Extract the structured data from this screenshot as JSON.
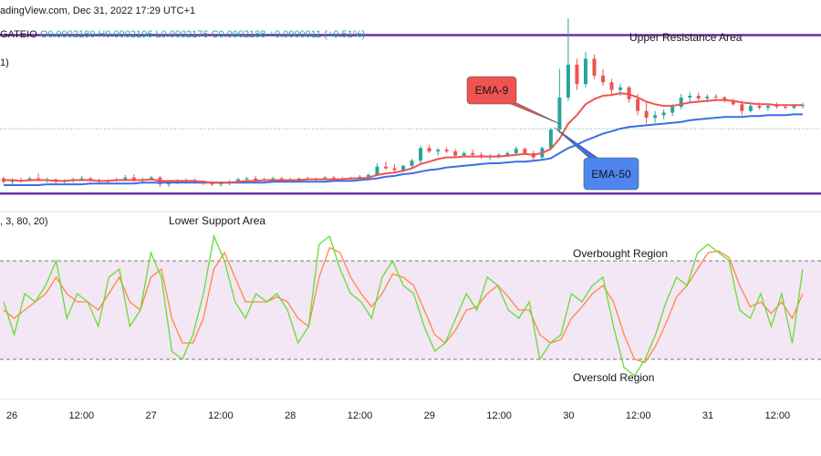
{
  "header": {
    "source": "adingView.com, Dec 31, 2022 17:29 UTC+1",
    "symbol": "GATEIO",
    "ohlc": "O0.0002180  H0.0002196  L0.0002176  C0.0002188  +0.0000011 (+0.51%)",
    "price_pane_tag": "1)",
    "stoch_pane_tag": ", 3, 80, 20)"
  },
  "colors": {
    "up": "#26a69a",
    "down": "#ef5350",
    "ema9": "#ef5350",
    "ema50": "#3c6ee6",
    "stoch_k": "#66dd33",
    "stoch_d": "#ff8844",
    "band_fill": "#f3e6f5",
    "resistance": "#6c2fa8"
  },
  "chart_data": [
    {
      "type": "candlestick",
      "title": "",
      "y_range": [
        0.0002105,
        0.000233
      ],
      "x_labels": [
        "26",
        "12:00",
        "27",
        "12:00",
        "28",
        "12:00",
        "29",
        "12:00",
        "30",
        "12:00",
        "31",
        "12:00"
      ],
      "indicators": [
        {
          "name": "EMA-9",
          "label": "EMA-9"
        },
        {
          "name": "EMA-50",
          "label": "EMA-50"
        }
      ],
      "levels": [
        {
          "name": "Upper Resistance Area",
          "value": 0.000231
        },
        {
          "name": "Lower Support",
          "value": 0.0002122
        }
      ],
      "annotations": [
        "Upper Resistance Area",
        "EMA-9",
        "EMA-50"
      ],
      "candles": [
        [
          0.000214,
          0.0002142,
          0.0002134,
          0.0002136
        ],
        [
          0.0002136,
          0.000214,
          0.0002133,
          0.0002138
        ],
        [
          0.0002138,
          0.0002141,
          0.0002135,
          0.0002137
        ],
        [
          0.0002137,
          0.0002142,
          0.0002136,
          0.000214
        ],
        [
          0.000214,
          0.0002146,
          0.0002137,
          0.0002138
        ],
        [
          0.0002138,
          0.0002141,
          0.0002135,
          0.0002139
        ],
        [
          0.0002139,
          0.000214,
          0.0002134,
          0.0002136
        ],
        [
          0.0002136,
          0.0002139,
          0.0002133,
          0.0002137
        ],
        [
          0.0002137,
          0.0002141,
          0.0002135,
          0.0002139
        ],
        [
          0.0002139,
          0.0002143,
          0.0002137,
          0.000214
        ],
        [
          0.000214,
          0.0002142,
          0.0002136,
          0.0002138
        ],
        [
          0.0002138,
          0.000214,
          0.0002134,
          0.0002136
        ],
        [
          0.0002136,
          0.0002139,
          0.0002133,
          0.0002138
        ],
        [
          0.0002138,
          0.0002141,
          0.0002136,
          0.0002139
        ],
        [
          0.0002139,
          0.0002144,
          0.0002137,
          0.0002141
        ],
        [
          0.0002141,
          0.0002145,
          0.0002136,
          0.0002137
        ],
        [
          0.0002137,
          0.0002141,
          0.0002134,
          0.0002139
        ],
        [
          0.0002139,
          0.0002143,
          0.0002137,
          0.0002141
        ],
        [
          0.0002141,
          0.0002143,
          0.000213,
          0.0002133
        ],
        [
          0.0002133,
          0.0002138,
          0.000213,
          0.0002136
        ],
        [
          0.0002136,
          0.0002139,
          0.0002133,
          0.0002137
        ],
        [
          0.0002137,
          0.000214,
          0.0002134,
          0.0002138
        ],
        [
          0.0002138,
          0.000214,
          0.0002135,
          0.0002136
        ],
        [
          0.0002136,
          0.0002138,
          0.0002132,
          0.0002134
        ],
        [
          0.0002134,
          0.0002137,
          0.0002131,
          0.0002133
        ],
        [
          0.0002133,
          0.0002136,
          0.000213,
          0.0002134
        ],
        [
          0.0002134,
          0.0002138,
          0.0002132,
          0.0002136
        ],
        [
          0.0002136,
          0.0002141,
          0.0002134,
          0.0002139
        ],
        [
          0.0002139,
          0.0002142,
          0.0002137,
          0.000214
        ],
        [
          0.000214,
          0.0002143,
          0.0002137,
          0.0002138
        ],
        [
          0.0002138,
          0.0002141,
          0.0002136,
          0.0002139
        ],
        [
          0.0002139,
          0.0002142,
          0.0002137,
          0.000214
        ],
        [
          0.000214,
          0.0002142,
          0.0002138,
          0.0002139
        ],
        [
          0.0002139,
          0.0002141,
          0.0002137,
          0.0002138
        ],
        [
          0.0002138,
          0.0002141,
          0.0002136,
          0.000214
        ],
        [
          0.000214,
          0.0002142,
          0.0002138,
          0.0002139
        ],
        [
          0.0002139,
          0.0002141,
          0.0002137,
          0.000214
        ],
        [
          0.000214,
          0.0002143,
          0.0002138,
          0.0002141
        ],
        [
          0.0002141,
          0.0002143,
          0.0002138,
          0.000214
        ],
        [
          0.000214,
          0.0002142,
          0.0002138,
          0.0002139
        ],
        [
          0.0002139,
          0.0002142,
          0.0002137,
          0.0002141
        ],
        [
          0.0002141,
          0.0002144,
          0.0002139,
          0.0002142
        ],
        [
          0.0002142,
          0.0002146,
          0.000214,
          0.0002144
        ],
        [
          0.0002144,
          0.0002158,
          0.0002143,
          0.0002154
        ],
        [
          0.0002154,
          0.000216,
          0.000215,
          0.0002152
        ],
        [
          0.0002152,
          0.0002157,
          0.0002148,
          0.000215
        ],
        [
          0.000215,
          0.0002156,
          0.0002149,
          0.0002155
        ],
        [
          0.0002155,
          0.0002163,
          0.0002153,
          0.0002161
        ],
        [
          0.0002161,
          0.0002179,
          0.0002158,
          0.0002176
        ],
        [
          0.0002176,
          0.000218,
          0.000217,
          0.0002172
        ],
        [
          0.0002172,
          0.0002176,
          0.0002167,
          0.0002174
        ],
        [
          0.0002174,
          0.0002177,
          0.000217,
          0.0002172
        ],
        [
          0.0002172,
          0.0002175,
          0.0002164,
          0.0002167
        ],
        [
          0.0002167,
          0.0002172,
          0.0002165,
          0.000217
        ],
        [
          0.000217,
          0.0002174,
          0.0002166,
          0.0002168
        ],
        [
          0.0002168,
          0.0002171,
          0.0002163,
          0.0002165
        ],
        [
          0.0002165,
          0.0002169,
          0.0002162,
          0.0002167
        ],
        [
          0.0002167,
          0.000217,
          0.0002164,
          0.0002168
        ],
        [
          0.0002168,
          0.0002172,
          0.0002166,
          0.000217
        ],
        [
          0.000217,
          0.0002178,
          0.0002168,
          0.0002175
        ],
        [
          0.0002175,
          0.0002177,
          0.0002168,
          0.000217
        ],
        [
          0.000217,
          0.0002173,
          0.0002162,
          0.0002165
        ],
        [
          0.0002165,
          0.0002178,
          0.0002163,
          0.0002176
        ],
        [
          0.0002176,
          0.00022,
          0.0002174,
          0.0002198
        ],
        [
          0.0002198,
          0.000227,
          0.0002194,
          0.0002236
        ],
        [
          0.0002236,
          0.000233,
          0.0002232,
          0.0002275
        ],
        [
          0.0002275,
          0.0002282,
          0.0002245,
          0.0002252
        ],
        [
          0.0002252,
          0.000229,
          0.0002248,
          0.0002282
        ],
        [
          0.0002282,
          0.0002287,
          0.0002258,
          0.0002262
        ],
        [
          0.0002262,
          0.000227,
          0.000225,
          0.0002254
        ],
        [
          0.0002254,
          0.0002258,
          0.000224,
          0.0002245
        ],
        [
          0.0002245,
          0.0002252,
          0.0002238,
          0.0002248
        ],
        [
          0.0002248,
          0.000225,
          0.000223,
          0.0002234
        ],
        [
          0.0002234,
          0.000224,
          0.0002215,
          0.000222
        ],
        [
          0.000222,
          0.000223,
          0.0002205,
          0.0002212
        ],
        [
          0.0002212,
          0.000222,
          0.0002206,
          0.0002215
        ],
        [
          0.0002215,
          0.0002222,
          0.000221,
          0.0002218
        ],
        [
          0.0002218,
          0.0002228,
          0.0002214,
          0.0002225
        ],
        [
          0.0002225,
          0.000224,
          0.0002222,
          0.0002236
        ],
        [
          0.0002236,
          0.0002242,
          0.000223,
          0.0002238
        ],
        [
          0.0002238,
          0.0002242,
          0.0002232,
          0.0002235
        ],
        [
          0.0002235,
          0.000224,
          0.000223,
          0.0002237
        ],
        [
          0.0002237,
          0.000224,
          0.0002232,
          0.0002236
        ],
        [
          0.0002236,
          0.0002238,
          0.000223,
          0.0002232
        ],
        [
          0.0002232,
          0.0002235,
          0.0002226,
          0.0002228
        ],
        [
          0.0002228,
          0.0002232,
          0.0002215,
          0.000222
        ],
        [
          0.000222,
          0.0002228,
          0.0002218,
          0.0002226
        ],
        [
          0.0002226,
          0.000223,
          0.0002222,
          0.0002224
        ],
        [
          0.0002224,
          0.0002228,
          0.000222,
          0.0002226
        ],
        [
          0.0002226,
          0.000223,
          0.0002223,
          0.0002225
        ],
        [
          0.0002225,
          0.0002228,
          0.0002222,
          0.0002224
        ],
        [
          0.0002224,
          0.0002228,
          0.0002222,
          0.0002226
        ],
        [
          0.0002226,
          0.000223,
          0.0002223,
          0.0002227
        ]
      ],
      "ema9": [
        0.0002138,
        0.0002138,
        0.0002137,
        0.0002138,
        0.0002138,
        0.0002138,
        0.0002137,
        0.0002137,
        0.0002138,
        0.0002138,
        0.0002138,
        0.0002137,
        0.0002137,
        0.0002138,
        0.0002138,
        0.0002138,
        0.0002138,
        0.0002139,
        0.0002137,
        0.0002137,
        0.0002137,
        0.0002137,
        0.0002137,
        0.0002136,
        0.0002135,
        0.0002135,
        0.0002135,
        0.0002136,
        0.0002137,
        0.0002137,
        0.0002138,
        0.0002138,
        0.0002138,
        0.0002138,
        0.0002138,
        0.0002139,
        0.0002139,
        0.0002139,
        0.0002139,
        0.0002139,
        0.000214,
        0.000214,
        0.0002141,
        0.0002144,
        0.0002146,
        0.0002147,
        0.0002149,
        0.0002152,
        0.0002157,
        0.000216,
        0.0002163,
        0.0002165,
        0.0002165,
        0.0002166,
        0.0002166,
        0.0002166,
        0.0002166,
        0.0002166,
        0.0002167,
        0.0002168,
        0.0002169,
        0.0002168,
        0.000217,
        0.0002175,
        0.0002187,
        0.0002205,
        0.0002215,
        0.0002228,
        0.0002234,
        0.0002238,
        0.0002239,
        0.0002241,
        0.000224,
        0.0002236,
        0.0002231,
        0.0002228,
        0.0002226,
        0.0002226,
        0.0002228,
        0.000223,
        0.0002231,
        0.0002232,
        0.0002233,
        0.0002233,
        0.0002232,
        0.000223,
        0.0002229,
        0.0002228,
        0.0002228,
        0.0002227,
        0.0002227,
        0.0002227,
        0.0002227
      ],
      "ema50": [
        0.0002132,
        0.0002132,
        0.0002132,
        0.0002132,
        0.0002132,
        0.0002133,
        0.0002133,
        0.0002133,
        0.0002133,
        0.0002133,
        0.0002134,
        0.0002134,
        0.0002134,
        0.0002134,
        0.0002134,
        0.0002134,
        0.0002135,
        0.0002135,
        0.0002135,
        0.0002135,
        0.0002135,
        0.0002135,
        0.0002135,
        0.0002135,
        0.0002135,
        0.0002135,
        0.0002135,
        0.0002135,
        0.0002135,
        0.0002135,
        0.0002135,
        0.0002136,
        0.0002136,
        0.0002136,
        0.0002136,
        0.0002136,
        0.0002136,
        0.0002136,
        0.0002137,
        0.0002137,
        0.0002137,
        0.0002138,
        0.0002139,
        0.000214,
        0.0002142,
        0.0002143,
        0.0002145,
        0.0002146,
        0.0002148,
        0.000215,
        0.0002151,
        0.0002153,
        0.0002154,
        0.0002155,
        0.0002156,
        0.0002157,
        0.0002158,
        0.0002158,
        0.0002159,
        0.000216,
        0.000216,
        0.0002161,
        0.0002162,
        0.0002164,
        0.000217,
        0.0002176,
        0.000218,
        0.0002185,
        0.0002189,
        0.0002193,
        0.0002196,
        0.0002199,
        0.0002201,
        0.0002202,
        0.0002203,
        0.0002204,
        0.0002205,
        0.0002206,
        0.0002207,
        0.0002209,
        0.000221,
        0.0002211,
        0.0002212,
        0.0002213,
        0.0002213,
        0.0002213,
        0.0002214,
        0.0002214,
        0.0002215,
        0.0002215,
        0.0002215,
        0.0002216,
        0.0002216
      ]
    },
    {
      "type": "line",
      "title": "",
      "y_range": [
        0,
        100
      ],
      "levels": [
        {
          "name": "Overbought Region",
          "value": 80
        },
        {
          "name": "Oversold Region",
          "value": 20
        }
      ],
      "annotations": [
        "Lower Support Area",
        "Overbought Region",
        "Oversold Region"
      ],
      "series": [
        {
          "name": "",
          "color": "#66dd33",
          "values": [
            55,
            35,
            60,
            55,
            65,
            80,
            45,
            60,
            55,
            40,
            70,
            75,
            40,
            50,
            85,
            70,
            25,
            20,
            35,
            60,
            95,
            80,
            55,
            45,
            60,
            55,
            60,
            50,
            30,
            40,
            90,
            95,
            75,
            60,
            55,
            45,
            70,
            80,
            65,
            60,
            40,
            25,
            30,
            45,
            60,
            50,
            70,
            65,
            50,
            45,
            55,
            20,
            30,
            35,
            60,
            55,
            65,
            70,
            40,
            15,
            10,
            20,
            35,
            55,
            70,
            65,
            85,
            90,
            85,
            80,
            50,
            45,
            60,
            40,
            60,
            30,
            75
          ]
        },
        {
          "name": "",
          "color": "#ff8844",
          "values": [
            50,
            45,
            50,
            55,
            60,
            70,
            60,
            55,
            55,
            50,
            60,
            70,
            55,
            50,
            70,
            75,
            45,
            30,
            30,
            45,
            75,
            85,
            70,
            55,
            55,
            55,
            58,
            55,
            45,
            40,
            70,
            88,
            85,
            70,
            60,
            52,
            60,
            72,
            70,
            65,
            50,
            35,
            30,
            38,
            50,
            52,
            60,
            65,
            58,
            50,
            50,
            35,
            30,
            32,
            45,
            52,
            60,
            65,
            55,
            35,
            20,
            18,
            28,
            42,
            58,
            65,
            75,
            85,
            86,
            82,
            65,
            52,
            55,
            48,
            55,
            45,
            60
          ]
        }
      ]
    }
  ]
}
